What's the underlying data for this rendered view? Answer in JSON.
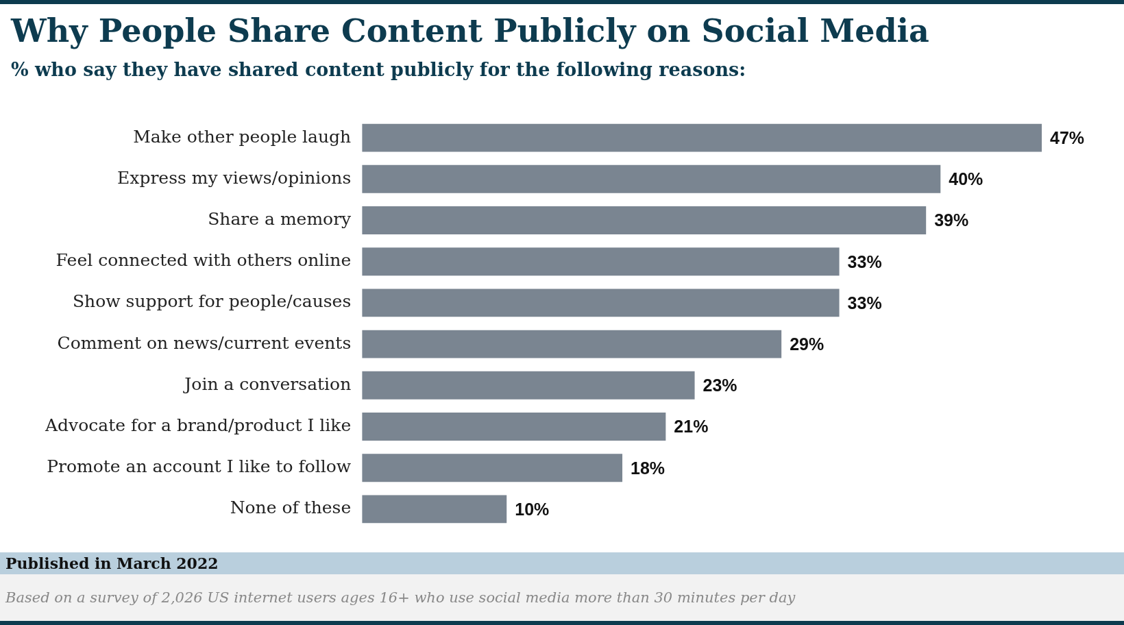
{
  "chart_data": {
    "type": "bar",
    "orientation": "horizontal",
    "title": "Why People Share Content Publicly on Social Media",
    "subtitle": "% who say they have shared content publicly for the following reasons:",
    "categories": [
      "Make other people laugh",
      "Express my views/opinions",
      "Share a memory",
      "Feel connected with others online",
      "Show support for people/causes",
      "Comment on news/current events",
      "Join a conversation",
      "Advocate for a brand/product I like",
      "Promote an account I like to follow",
      "None of these"
    ],
    "values": [
      47,
      40,
      39,
      33,
      33,
      29,
      23,
      21,
      18,
      10
    ],
    "value_labels": [
      "47%",
      "40%",
      "39%",
      "33%",
      "33%",
      "29%",
      "23%",
      "21%",
      "18%",
      "10%"
    ],
    "color": "#7a8591",
    "annotations": [
      "Published in March 2022",
      "Based on a survey of 2,026 US internet users ages 16+ who use social media more than 30 minutes per day"
    ]
  }
}
